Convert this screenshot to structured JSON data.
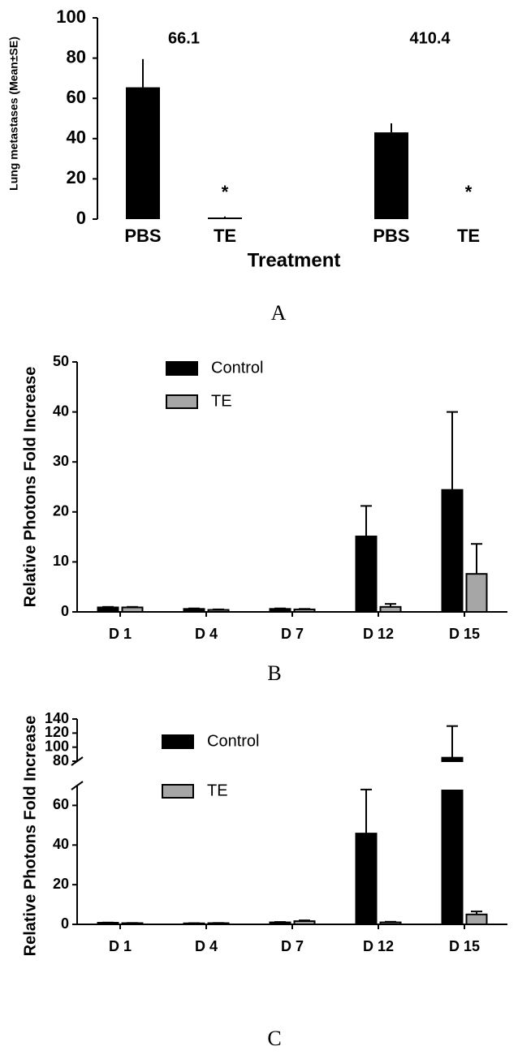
{
  "chart_data": [
    {
      "type": "bar",
      "y_label": "Lung metastases (Mean±SE)",
      "x_label": "Treatment",
      "panel": "A",
      "categories": [
        "PBS",
        "TE",
        "PBS",
        "TE"
      ],
      "values": [
        65.5,
        0.8,
        43.1,
        0
      ],
      "errors": [
        14,
        0.5,
        4.5,
        0
      ],
      "color": "#000000",
      "group_labels": [
        "66.1",
        "410.4"
      ],
      "significance": [
        null,
        "*",
        null,
        "*"
      ],
      "ylim": [
        0,
        100
      ],
      "yticks": [
        0,
        20,
        40,
        60,
        80,
        100
      ]
    },
    {
      "type": "bar",
      "y_label": "Relative Photons Fold Increase",
      "panel": "B",
      "categories": [
        "D 1",
        "D 4",
        "D 7",
        "D 12",
        "D 15"
      ],
      "series": [
        {
          "name": "Control",
          "color": "#000000",
          "values": [
            0.9,
            0.6,
            0.6,
            15.1,
            24.4
          ],
          "errors": [
            0.1,
            0.1,
            0.1,
            6.1,
            15.6
          ]
        },
        {
          "name": "TE",
          "color": "#a6a6a6",
          "values": [
            0.9,
            0.4,
            0.5,
            1.0,
            7.6
          ],
          "errors": [
            0.1,
            0.1,
            0.1,
            0.6,
            6.0
          ]
        }
      ],
      "ylim": [
        0,
        50
      ],
      "yticks": [
        0,
        10,
        20,
        30,
        40,
        50
      ]
    },
    {
      "type": "bar",
      "y_label": "Relative Photons Fold Increase",
      "panel": "C",
      "categories": [
        "D 1",
        "D 4",
        "D 7",
        "D 12",
        "D 15"
      ],
      "series": [
        {
          "name": "Control",
          "color": "#000000",
          "values": [
            0.8,
            0.5,
            1.0,
            45.8,
            85
          ],
          "errors": [
            0.1,
            0.1,
            0.2,
            22.2,
            45
          ]
        },
        {
          "name": "TE",
          "color": "#a6a6a6",
          "values": [
            0.6,
            0.6,
            1.6,
            1.0,
            5.0
          ],
          "errors": [
            0.1,
            0.1,
            0.4,
            0.3,
            1.5
          ]
        }
      ],
      "ylim": [
        0,
        140
      ],
      "yticks": [
        0,
        20,
        40,
        60,
        80,
        100,
        120,
        140
      ],
      "y_break": [
        70,
        80
      ]
    }
  ]
}
